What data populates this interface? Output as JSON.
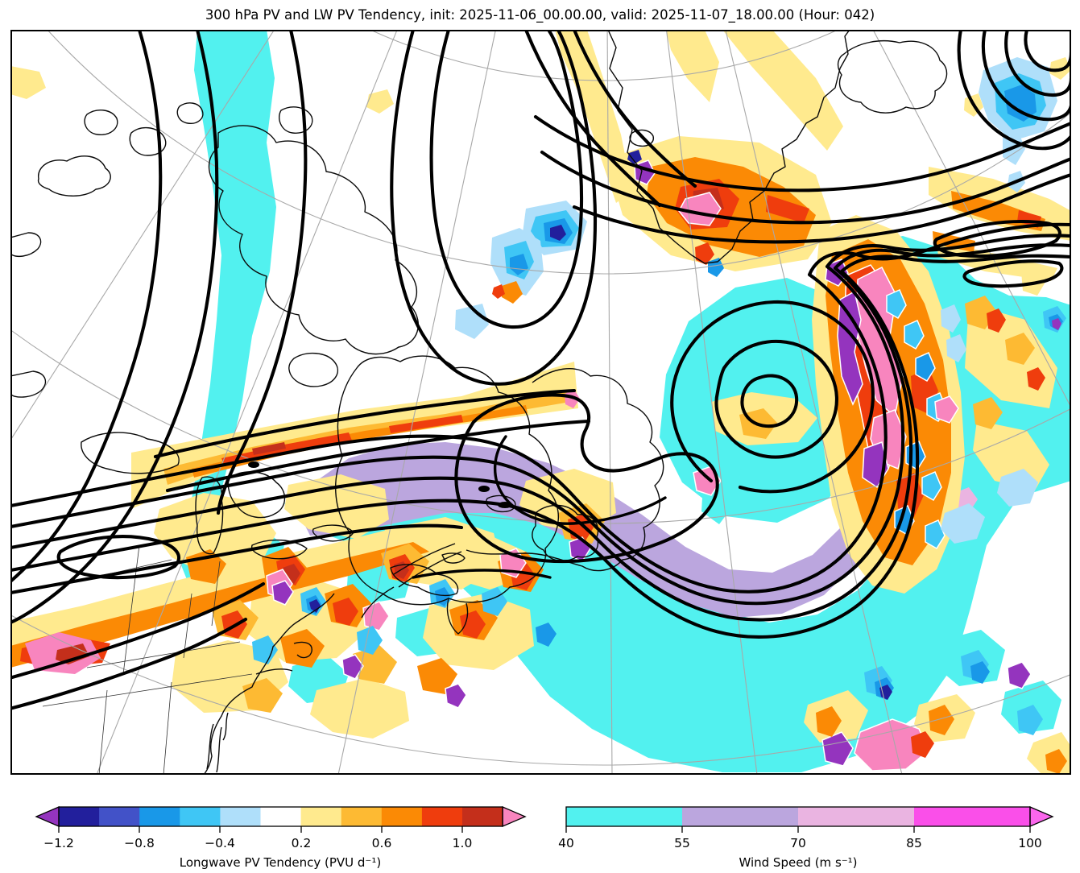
{
  "title": "300 hPa PV and LW PV Tendency, init: 2025-11-06_00.00.00, valid: 2025-11-07_18.00.00 (Hour: 042)",
  "chart_data": {
    "type": "heatmap",
    "title": "300 hPa PV and LW PV Tendency, init: 2025-11-06_00.00.00, valid: 2025-11-07_18.00.00 (Hour: 042)",
    "level": "300 hPa",
    "init_time": "2025-11-06_00.00.00",
    "valid_time": "2025-11-07_18.00.00",
    "forecast_hour": "042",
    "region": "eastern North America, Greenland and the North Atlantic (polar stereographic view)",
    "legend_position": "two horizontal colorbars below map",
    "grid": "thin gray lat/lon graticule",
    "layers": [
      {
        "name": "300 hPa potential vorticity",
        "render": "thick black contour lines forming a large cyclonic vortex over the North Atlantic and troughs over Canada"
      },
      {
        "name": "Longwave PV tendency",
        "render": "filled contours (blue negative, orange/red positive, purple below -1.2, pink above 1.2)",
        "units": "PVU d⁻¹",
        "levels": [
          -1.2,
          -1.0,
          -0.8,
          -0.6,
          -0.4,
          -0.2,
          0.2,
          0.4,
          0.6,
          0.8,
          1.0,
          1.2
        ]
      },
      {
        "name": "Wind speed",
        "render": "filled contours: cyan band 40–55, lavender 55–70 wrapping the Atlantic vortex and a cyan jet streak over eastern Canada",
        "units": "m s⁻¹",
        "levels": [
          40,
          55,
          70,
          85,
          100
        ]
      },
      {
        "name": "coastlines and state borders",
        "render": "thin black lines"
      }
    ]
  },
  "colorbars": {
    "pv_tendency": {
      "label": "Longwave PV Tendency (PVU d⁻¹)",
      "tick_labels": [
        "−1.2",
        "−0.8",
        "−0.4",
        "0.2",
        "0.6",
        "1.0"
      ],
      "levels": [
        -1.2,
        -1.0,
        -0.8,
        -0.6,
        -0.4,
        -0.2,
        0.2,
        0.4,
        0.6,
        0.8,
        1.0,
        1.2
      ],
      "segment_colors": [
        "#221F9C",
        "#4252C8",
        "#1998E8",
        "#3FC6F5",
        "#AFDFFA",
        "#FFFFFF",
        "#FFEA8E",
        "#FDBA33",
        "#FB8A05",
        "#EF3D0D",
        "#C42F1B"
      ],
      "under_color": "#9434BE",
      "over_color": "#F885BE",
      "extend": "both"
    },
    "wind_speed": {
      "label": "Wind Speed (m s⁻¹)",
      "tick_labels": [
        "40",
        "55",
        "70",
        "85",
        "100"
      ],
      "levels": [
        40,
        55,
        70,
        85,
        100
      ],
      "segment_colors": [
        "#52F1EF",
        "#BBA6DE",
        "#EAB4E1",
        "#FA4FE9"
      ],
      "over_color": "#FA66EC",
      "extend": "max"
    }
  }
}
